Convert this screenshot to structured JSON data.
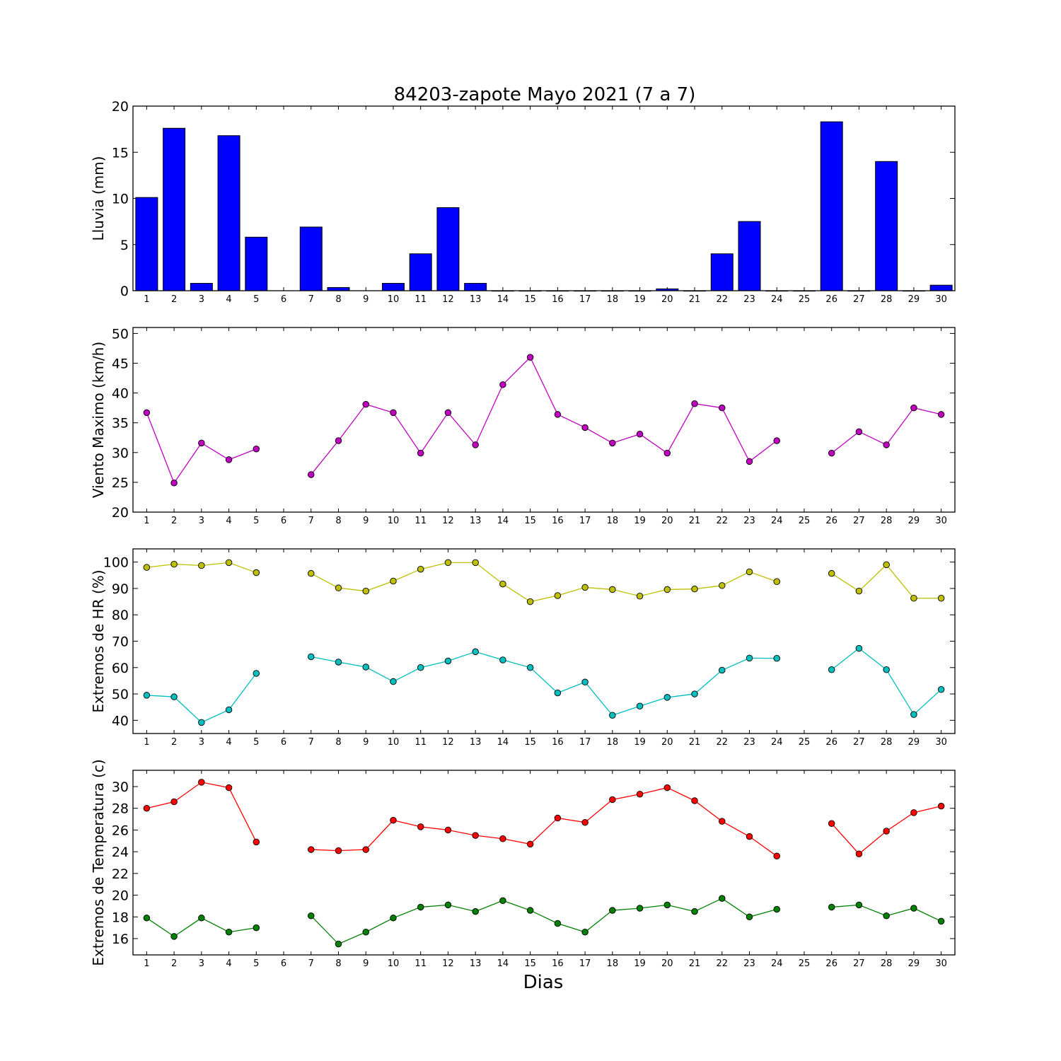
{
  "title": "84203-zapote Mayo 2021  (7 a 7)",
  "xlabel": "Dias",
  "chart_data": [
    {
      "type": "bar",
      "ylabel": "Lluvia (mm)",
      "ylim": [
        0,
        20
      ],
      "yticks": [
        0,
        5,
        10,
        15,
        20
      ],
      "x": [
        1,
        2,
        3,
        4,
        5,
        6,
        7,
        8,
        9,
        10,
        11,
        12,
        13,
        14,
        15,
        16,
        17,
        18,
        19,
        20,
        21,
        22,
        23,
        24,
        25,
        26,
        27,
        28,
        29,
        30
      ],
      "series": [
        {
          "color": "#0000ff",
          "values": [
            10.1,
            17.6,
            0.8,
            16.8,
            5.8,
            null,
            6.9,
            0.35,
            null,
            0.8,
            4.0,
            9.0,
            0.8,
            0,
            0,
            0,
            0,
            0,
            0,
            0.2,
            0,
            4.0,
            7.5,
            0,
            0,
            18.3,
            0,
            14.0,
            0,
            0.6
          ]
        }
      ]
    },
    {
      "type": "line",
      "ylabel": "Viento Maximo (km/h)",
      "ylim": [
        20,
        51
      ],
      "yticks": [
        20,
        25,
        30,
        35,
        40,
        45,
        50
      ],
      "x": [
        1,
        2,
        3,
        4,
        5,
        6,
        7,
        8,
        9,
        10,
        11,
        12,
        13,
        14,
        15,
        16,
        17,
        18,
        19,
        20,
        21,
        22,
        23,
        24,
        25,
        26,
        27,
        28,
        29,
        30
      ],
      "series": [
        {
          "color": "#bf00bf",
          "values": [
            36.7,
            24.9,
            31.6,
            28.8,
            30.6,
            null,
            26.3,
            32.0,
            38.1,
            36.7,
            29.9,
            36.7,
            31.3,
            41.4,
            46.0,
            36.4,
            34.2,
            31.6,
            33.1,
            29.9,
            38.2,
            37.5,
            28.5,
            32.0,
            null,
            29.9,
            33.5,
            31.3,
            37.5,
            36.4
          ]
        }
      ]
    },
    {
      "type": "line",
      "ylabel": "Extremos de HR (%)",
      "ylim": [
        35,
        105
      ],
      "yticks": [
        40,
        50,
        60,
        70,
        80,
        90,
        100
      ],
      "x": [
        1,
        2,
        3,
        4,
        5,
        6,
        7,
        8,
        9,
        10,
        11,
        12,
        13,
        14,
        15,
        16,
        17,
        18,
        19,
        20,
        21,
        22,
        23,
        24,
        25,
        26,
        27,
        28,
        29,
        30
      ],
      "series": [
        {
          "color": "#bfbf00",
          "values": [
            98,
            99.2,
            98.7,
            99.8,
            96,
            null,
            95.7,
            90.2,
            89,
            92.8,
            97.3,
            99.8,
            99.8,
            91.7,
            85,
            87.3,
            90.4,
            89.6,
            87.1,
            89.6,
            89.8,
            91.1,
            96.3,
            92.6,
            null,
            95.7,
            89,
            99,
            86.3,
            86.3
          ]
        },
        {
          "color": "#00bfbf",
          "values": [
            49.5,
            48.9,
            39.2,
            44,
            57.8,
            null,
            64.1,
            62.1,
            60.2,
            54.7,
            60,
            62.5,
            66,
            62.9,
            60,
            50.4,
            54.5,
            41.9,
            45.4,
            48.7,
            50,
            59,
            63.6,
            63.5,
            null,
            59.2,
            67.3,
            59.2,
            42.2,
            51.7
          ]
        }
      ]
    },
    {
      "type": "line",
      "ylabel": "Extremos de Temperatura (c)",
      "ylim": [
        14.5,
        31.5
      ],
      "yticks": [
        16,
        18,
        20,
        22,
        24,
        26,
        28,
        30
      ],
      "x": [
        1,
        2,
        3,
        4,
        5,
        6,
        7,
        8,
        9,
        10,
        11,
        12,
        13,
        14,
        15,
        16,
        17,
        18,
        19,
        20,
        21,
        22,
        23,
        24,
        25,
        26,
        27,
        28,
        29,
        30
      ],
      "series": [
        {
          "color": "#ff0000",
          "values": [
            28.0,
            28.6,
            30.4,
            29.9,
            24.9,
            null,
            24.2,
            24.1,
            24.2,
            26.9,
            26.3,
            26.0,
            25.5,
            25.2,
            24.7,
            27.1,
            26.7,
            28.8,
            29.3,
            29.9,
            28.7,
            26.8,
            25.4,
            23.6,
            null,
            26.6,
            23.8,
            25.9,
            27.6,
            28.2
          ]
        },
        {
          "color": "#008000",
          "values": [
            17.9,
            16.2,
            17.9,
            16.6,
            17.0,
            null,
            18.1,
            15.5,
            16.6,
            17.9,
            18.9,
            19.1,
            18.5,
            19.5,
            18.6,
            17.4,
            16.6,
            18.6,
            18.8,
            19.1,
            18.5,
            19.7,
            18.0,
            18.7,
            null,
            18.9,
            19.1,
            18.1,
            18.8,
            17.6
          ]
        }
      ]
    }
  ]
}
